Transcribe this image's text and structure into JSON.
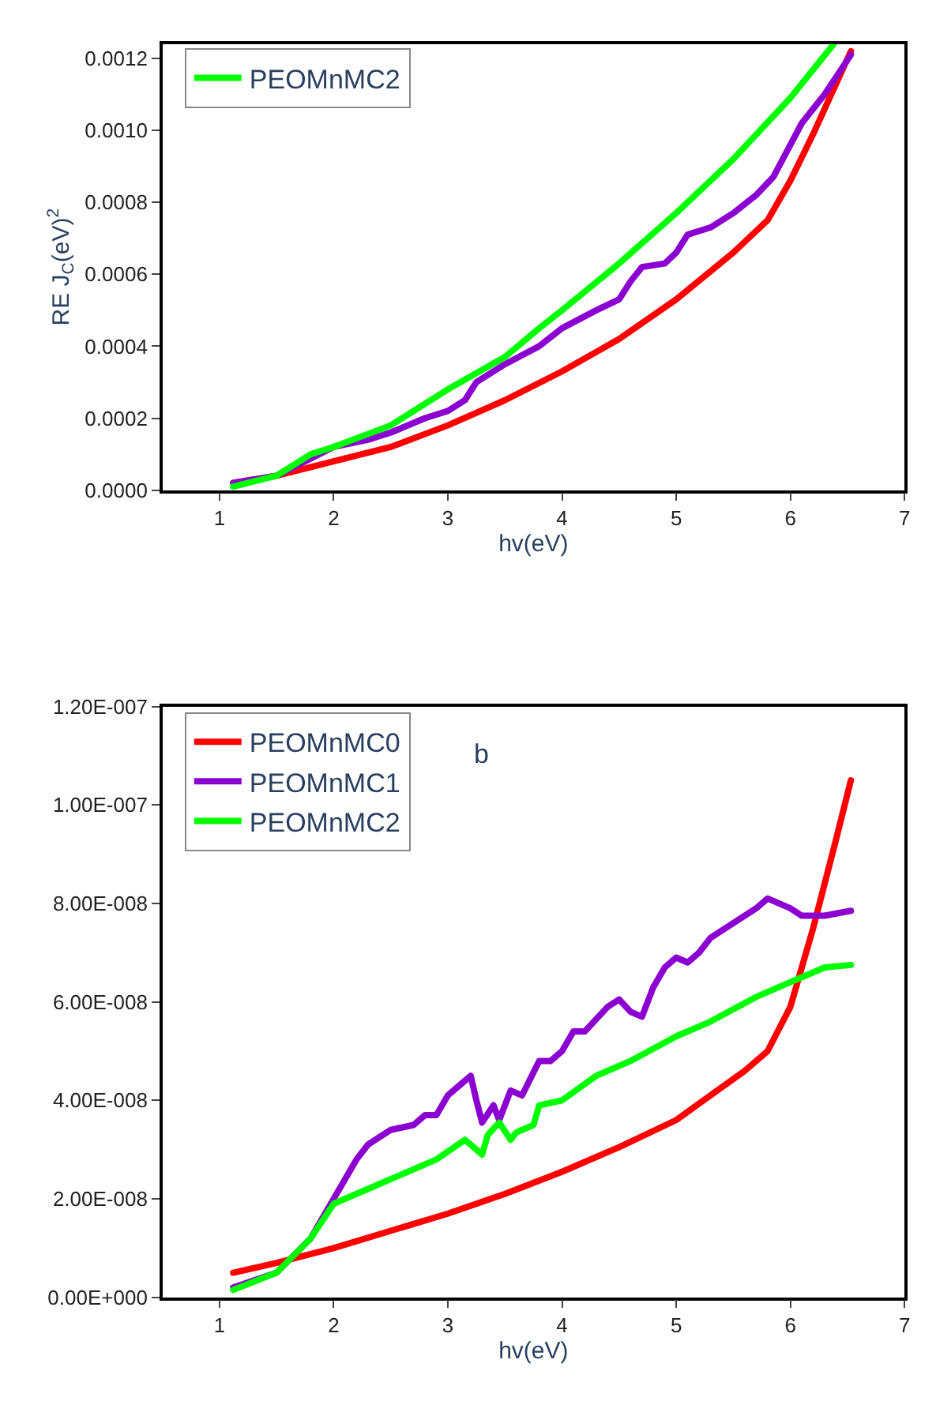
{
  "chart_data": [
    {
      "type": "line",
      "xlabel": "hv(eV)",
      "ylabel": "RE J$_{C}$(eV)$^{2}$",
      "legend": "top left",
      "grid": false,
      "marker": "none",
      "line_style": "solid",
      "xlim": [
        0.5,
        7
      ],
      "xticks": [
        1,
        2,
        3,
        4,
        5,
        6,
        7
      ],
      "ylim": [
        0,
        0.00124
      ],
      "yticks": [
        {
          "value": 0,
          "label": "0.0000"
        },
        {
          "value": 0.0002,
          "label": "0.0002"
        },
        {
          "value": 0.0004,
          "label": "0.0004"
        },
        {
          "value": 0.0006,
          "label": "0.0006"
        },
        {
          "value": 0.0008,
          "label": "0.0008"
        },
        {
          "value": 0.001,
          "label": "0.0010"
        },
        {
          "value": 0.0012,
          "label": "0.0012"
        }
      ],
      "series": [
        {
          "color": "#ff0000",
          "x": [
            1.12,
            1.5,
            2,
            2.5,
            3,
            3.5,
            4,
            4.5,
            5,
            5.5,
            5.8,
            6,
            6.2,
            6.53
          ],
          "values": [
            2e-05,
            4e-05,
            8e-05,
            0.00012,
            0.00018,
            0.00025,
            0.00033,
            0.00042,
            0.00053,
            0.00066,
            0.00075,
            0.00086,
            0.00099,
            0.00122
          ]
        },
        {
          "color": "#8b00d0",
          "x": [
            1.12,
            1.5,
            2,
            2.3,
            2.5,
            2.8,
            3,
            3.15,
            3.25,
            3.5,
            3.8,
            4,
            4.3,
            4.5,
            4.6,
            4.7,
            4.9,
            5,
            5.1,
            5.3,
            5.5,
            5.7,
            5.85,
            6,
            6.1,
            6.3,
            6.53
          ],
          "values": [
            2e-05,
            4e-05,
            0.00012,
            0.00014,
            0.00016,
            0.0002,
            0.00022,
            0.00025,
            0.0003,
            0.00035,
            0.0004,
            0.00045,
            0.0005,
            0.00053,
            0.00058,
            0.00062,
            0.00063,
            0.00066,
            0.00071,
            0.00073,
            0.00077,
            0.00082,
            0.00087,
            0.00096,
            0.00102,
            0.0011,
            0.00121
          ]
        },
        {
          "name": "PEOMnMC2",
          "color": "#00ff00",
          "x": [
            1.12,
            1.5,
            1.8,
            2,
            2.5,
            3,
            3.5,
            3.8,
            4,
            4.5,
            5,
            5.5,
            6,
            6.38
          ],
          "values": [
            1e-05,
            4e-05,
            0.0001,
            0.00012,
            0.00018,
            0.00028,
            0.00037,
            0.00045,
            0.0005,
            0.00063,
            0.00077,
            0.00092,
            0.00109,
            0.00124
          ]
        }
      ]
    },
    {
      "type": "line",
      "xlabel": "hv(eV)",
      "legend": "top left",
      "grid": false,
      "marker": "none",
      "line_style": "solid",
      "annotations": [
        "b"
      ],
      "xlim": [
        0.5,
        7
      ],
      "xticks": [
        1,
        2,
        3,
        4,
        5,
        6,
        7
      ],
      "ylim": [
        0,
        1.2e-07
      ],
      "yticks": [
        {
          "value": 0,
          "label": "0.00E+000"
        },
        {
          "value": 2e-08,
          "label": "2.00E-008"
        },
        {
          "value": 4e-08,
          "label": "4.00E-008"
        },
        {
          "value": 6e-08,
          "label": "6.00E-008"
        },
        {
          "value": 8e-08,
          "label": "8.00E-008"
        },
        {
          "value": 1e-07,
          "label": "1.00E-007"
        },
        {
          "value": 1.2e-07,
          "label": "1.20E-007"
        }
      ],
      "series": [
        {
          "name": "PEOMnMC0",
          "color": "#ff0000",
          "x": [
            1.12,
            1.5,
            2,
            2.5,
            3,
            3.5,
            4,
            4.5,
            5,
            5.3,
            5.6,
            5.8,
            6,
            6.2,
            6.4,
            6.53
          ],
          "values": [
            5e-09,
            7e-09,
            1e-08,
            1.35e-08,
            1.7e-08,
            2.1e-08,
            2.55e-08,
            3.05e-08,
            3.6e-08,
            4.1e-08,
            4.6e-08,
            5e-08,
            5.9e-08,
            7.5e-08,
            9.3e-08,
            1.05e-07
          ]
        },
        {
          "name": "PEOMnMC1",
          "color": "#8b00d0",
          "x": [
            1.12,
            1.5,
            1.8,
            2,
            2.2,
            2.3,
            2.5,
            2.7,
            2.8,
            2.9,
            3,
            3.1,
            3.2,
            3.25,
            3.3,
            3.4,
            3.45,
            3.55,
            3.65,
            3.8,
            3.9,
            4,
            4.1,
            4.2,
            4.4,
            4.5,
            4.6,
            4.7,
            4.8,
            4.9,
            5,
            5.1,
            5.2,
            5.3,
            5.5,
            5.7,
            5.8,
            5.9,
            6,
            6.1,
            6.3,
            6.53
          ],
          "values": [
            2e-09,
            5e-09,
            1.2e-08,
            2e-08,
            2.8e-08,
            3.1e-08,
            3.4e-08,
            3.5e-08,
            3.7e-08,
            3.7e-08,
            4.1e-08,
            4.3e-08,
            4.5e-08,
            4e-08,
            3.55e-08,
            3.9e-08,
            3.6e-08,
            4.2e-08,
            4.1e-08,
            4.8e-08,
            4.8e-08,
            5e-08,
            5.4e-08,
            5.4e-08,
            5.9e-08,
            6.05e-08,
            5.8e-08,
            5.7e-08,
            6.3e-08,
            6.7e-08,
            6.9e-08,
            6.8e-08,
            7e-08,
            7.3e-08,
            7.6e-08,
            7.9e-08,
            8.1e-08,
            8e-08,
            7.9e-08,
            7.75e-08,
            7.75e-08,
            7.85e-08
          ]
        },
        {
          "name": "PEOMnMC2",
          "color": "#00ff00",
          "x": [
            1.12,
            1.5,
            1.8,
            2,
            2.3,
            2.6,
            2.9,
            3.15,
            3.3,
            3.35,
            3.45,
            3.55,
            3.6,
            3.75,
            3.8,
            4,
            4.3,
            4.6,
            5,
            5.3,
            5.7,
            6,
            6.3,
            6.53
          ],
          "values": [
            1.5e-09,
            5e-09,
            1.2e-08,
            1.9e-08,
            2.2e-08,
            2.5e-08,
            2.8e-08,
            3.2e-08,
            2.9e-08,
            3.3e-08,
            3.55e-08,
            3.2e-08,
            3.35e-08,
            3.5e-08,
            3.9e-08,
            4e-08,
            4.5e-08,
            4.8e-08,
            5.3e-08,
            5.6e-08,
            6.1e-08,
            6.4e-08,
            6.7e-08,
            6.75e-08
          ]
        }
      ]
    }
  ]
}
